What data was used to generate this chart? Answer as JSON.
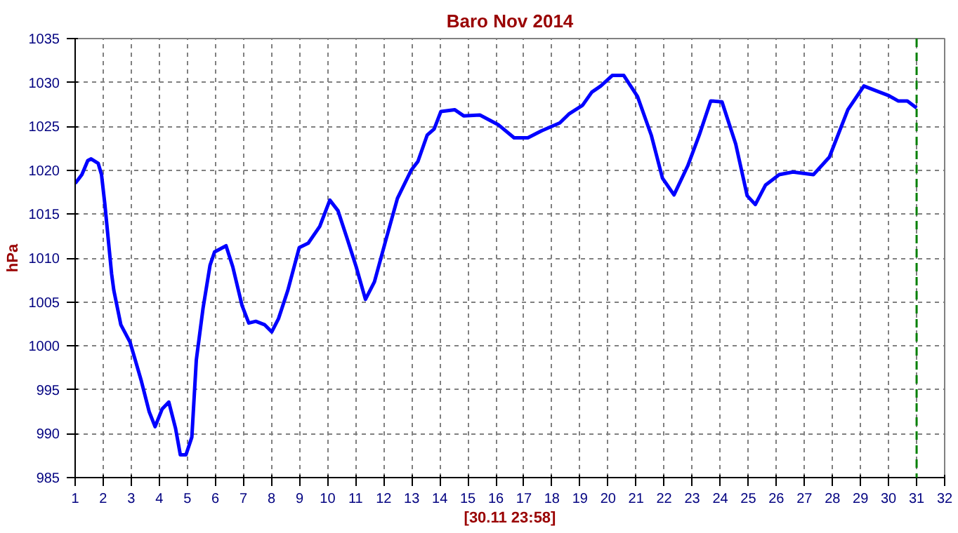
{
  "chart_data": {
    "type": "line",
    "title": "Baro Nov 2014",
    "xlabel": "[30.11 23:58]",
    "ylabel": "hPa",
    "xlim": [
      1,
      32
    ],
    "ylim": [
      985,
      1035
    ],
    "xticks": [
      1,
      2,
      3,
      4,
      5,
      6,
      7,
      8,
      9,
      10,
      11,
      12,
      13,
      14,
      15,
      16,
      17,
      18,
      19,
      20,
      21,
      22,
      23,
      24,
      25,
      26,
      27,
      28,
      29,
      30,
      31,
      32
    ],
    "yticks": [
      985,
      990,
      995,
      1000,
      1005,
      1010,
      1015,
      1020,
      1025,
      1030,
      1035
    ],
    "grid": true,
    "marker": "none",
    "line_style": "solid",
    "ref_lines": [
      {
        "axis": "x",
        "value": 31,
        "label": null,
        "color": "#008000",
        "line_style": "dashed"
      }
    ],
    "series": [
      {
        "color": "#0000ff",
        "x": [
          1.0,
          1.24,
          1.45,
          1.57,
          1.82,
          1.94,
          2.06,
          2.3,
          2.38,
          2.63,
          2.96,
          3.36,
          3.64,
          3.85,
          4.1,
          4.34,
          4.58,
          4.75,
          4.95,
          5.16,
          5.32,
          5.56,
          5.81,
          5.97,
          6.38,
          6.62,
          6.95,
          7.19,
          7.44,
          7.76,
          8.01,
          8.25,
          8.58,
          8.99,
          9.31,
          9.72,
          10.08,
          10.37,
          10.7,
          11.02,
          11.35,
          11.67,
          12.09,
          12.49,
          12.98,
          13.22,
          13.55,
          13.8,
          14.04,
          14.53,
          14.85,
          15.43,
          16.08,
          16.65,
          17.14,
          17.63,
          18.28,
          18.6,
          19.09,
          19.42,
          19.74,
          20.15,
          20.56,
          21.05,
          21.54,
          21.94,
          22.35,
          22.84,
          23.25,
          23.66,
          24.06,
          24.55,
          24.96,
          25.25,
          25.61,
          26.1,
          26.59,
          27.32,
          27.89,
          28.55,
          29.12,
          29.52,
          30.01,
          30.34,
          30.67,
          31.0
        ],
        "values": [
          1018.5,
          1019.5,
          1021.1,
          1021.3,
          1020.8,
          1019.5,
          1016.1,
          1008.2,
          1006.3,
          1002.4,
          1000.4,
          996.0,
          992.5,
          990.8,
          992.8,
          993.6,
          990.6,
          987.6,
          987.6,
          989.6,
          998.4,
          1004.3,
          1009.2,
          1010.7,
          1011.4,
          1009.0,
          1004.6,
          1002.6,
          1002.8,
          1002.4,
          1001.6,
          1003.1,
          1006.3,
          1011.2,
          1011.7,
          1013.6,
          1016.6,
          1015.4,
          1012.2,
          1009.0,
          1005.3,
          1007.3,
          1012.2,
          1016.8,
          1020.0,
          1021.0,
          1024.0,
          1024.7,
          1026.7,
          1026.9,
          1026.2,
          1026.3,
          1025.2,
          1023.7,
          1023.7,
          1024.5,
          1025.4,
          1026.4,
          1027.4,
          1028.9,
          1029.6,
          1030.8,
          1030.8,
          1028.4,
          1024.0,
          1019.1,
          1017.2,
          1020.5,
          1024.0,
          1027.9,
          1027.8,
          1023.0,
          1017.1,
          1016.1,
          1018.3,
          1019.5,
          1019.8,
          1019.5,
          1021.5,
          1026.9,
          1029.6,
          1029.1,
          1028.5,
          1027.9,
          1027.9,
          1027.1
        ]
      }
    ]
  }
}
